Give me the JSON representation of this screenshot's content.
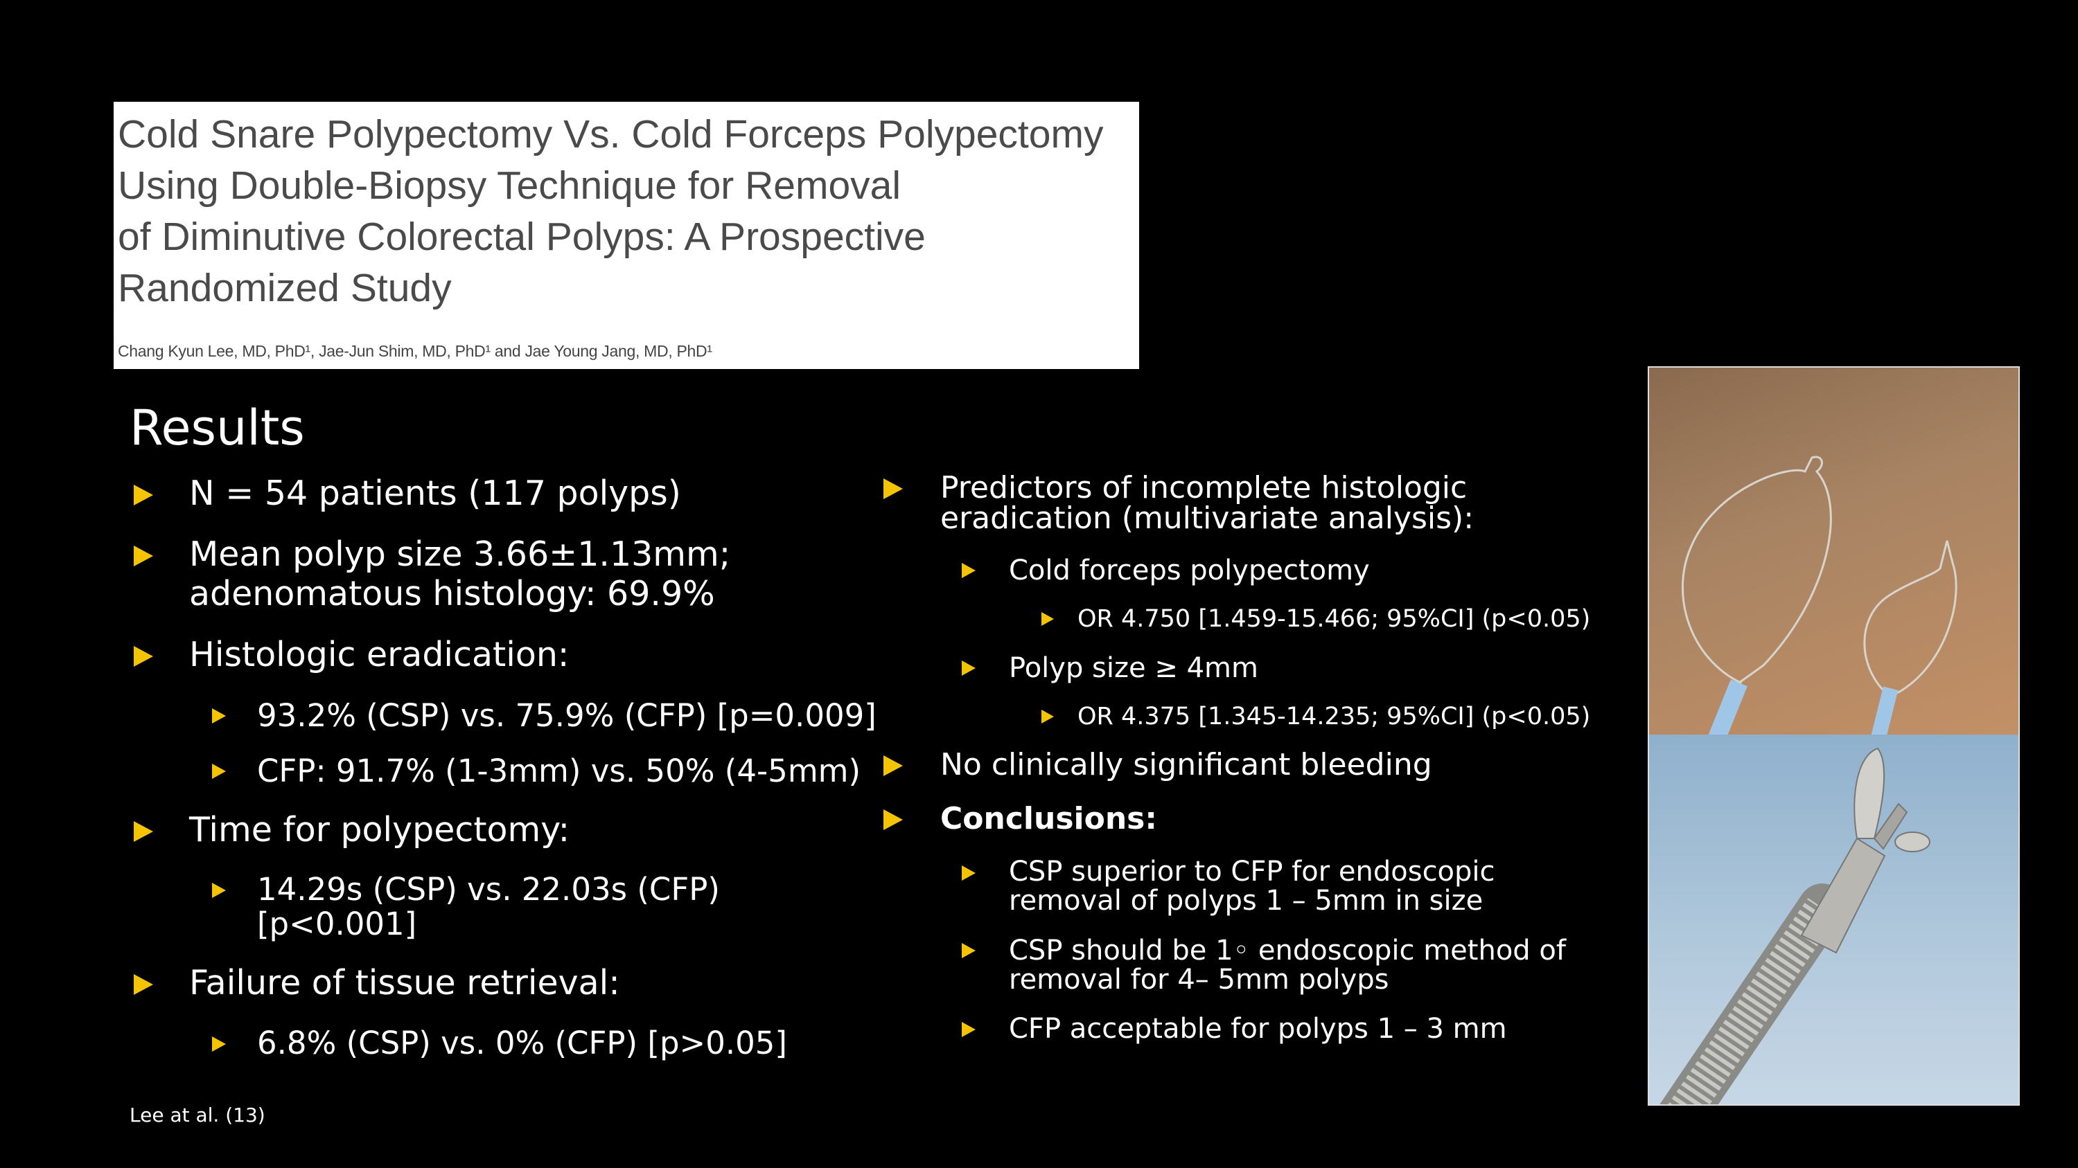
{
  "header": {
    "title_lines": [
      "Cold Snare Polypectomy Vs. Cold Forceps Polypectomy",
      "Using Double-Biopsy Technique for Removal",
      "of Diminutive Colorectal Polyps: A Prospective",
      "Randomized Study"
    ],
    "authors": "Chang Kyun Lee, MD, PhD¹, Jae-Jun Shim, MD, PhD¹ and Jae Young Jang, MD, PhD¹"
  },
  "results": {
    "heading": "Results",
    "left": {
      "patients": "N = 54 patients (117 polyps)",
      "size_line1": "Mean polyp size 3.66±1.13mm;",
      "size_line2": "adenomatous histology:  69.9%",
      "eradication": "Histologic eradication:",
      "eradication_sub1": "93.2% (CSP) vs. 75.9% (CFP) [p=0.009]",
      "eradication_sub2": "CFP:  91.7% (1-3mm) vs. 50% (4-5mm)",
      "time": "Time for polypectomy:",
      "time_sub_line1": "14.29s (CSP) vs. 22.03s (CFP)",
      "time_sub_line2": "[p<0.001]",
      "failure": "Failure of tissue retrieval:",
      "failure_sub": "6.8% (CSP) vs. 0% (CFP) [p>0.05]"
    },
    "right": {
      "predictors_line1": "Predictors of incomplete histologic",
      "predictors_line2": "eradication (multivariate analysis):",
      "forceps": "Cold forceps polypectomy",
      "forceps_or": "OR 4.750 [1.459-15.466; 95%CI] (p<0.05)",
      "size": "Polyp size ≥ 4mm",
      "size_or": "OR 4.375 [1.345-14.235; 95%CI] (p<0.05)",
      "bleeding": "No clinically significant bleeding",
      "conclusions": "Conclusions:",
      "c1_line1": "CSP superior to CFP for endoscopic",
      "c1_line2": "removal of polyps 1 – 5mm in size",
      "c2_line1": "CSP should be 1◦ endoscopic method of",
      "c2_line2": "removal for 4– 5mm polyps",
      "c3": "CFP acceptable for polyps 1 – 3 mm"
    }
  },
  "citation": "Lee at al. (13)",
  "colors": {
    "bullet": "#f5c400",
    "background": "#000000",
    "text": "#ffffff"
  }
}
